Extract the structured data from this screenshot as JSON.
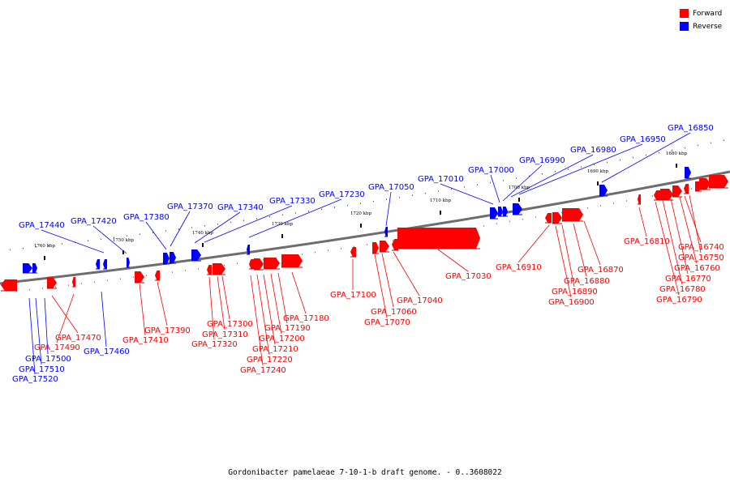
{
  "legend": {
    "forward_label": "Forward",
    "reverse_label": "Reverse",
    "forward_color": "#ff0000",
    "reverse_color": "#0000ff"
  },
  "caption": "Gordonibacter pamelaeae 7-10-1-b draft genome. - 0..3608022",
  "ticks": [
    "1760 kbp",
    "1750 kbp",
    "1740 kbp",
    "1730 kbp",
    "1720 kbp",
    "1710 kbp",
    "1700 kbp",
    "1690 kbp",
    "1680 kbp"
  ],
  "genes": {
    "reverse": [
      "GPA_17440",
      "GPA_17420",
      "GPA_17380",
      "GPA_17370",
      "GPA_17340",
      "GPA_17330",
      "GPA_17230",
      "GPA_17050",
      "GPA_17010",
      "GPA_17000",
      "GPA_16990",
      "GPA_16980",
      "GPA_16950",
      "GPA_16850",
      "GPA_17460",
      "GPA_17500",
      "GPA_17510",
      "GPA_17520"
    ],
    "forward": [
      "GPA_17470",
      "GPA_17490",
      "GPA_17390",
      "GPA_17410",
      "GPA_17300",
      "GPA_17310",
      "GPA_17320",
      "GPA_17180",
      "GPA_17190",
      "GPA_17200",
      "GPA_17210",
      "GPA_17220",
      "GPA_17240",
      "GPA_17100",
      "GPA_17040",
      "GPA_17060",
      "GPA_17070",
      "GPA_17030",
      "GPA_16910",
      "GPA_16870",
      "GPA_16880",
      "GPA_16890",
      "GPA_16900",
      "GPA_16810",
      "GPA_16740",
      "GPA_16750",
      "GPA_16760",
      "GPA_16770",
      "GPA_16780",
      "GPA_16790"
    ]
  }
}
